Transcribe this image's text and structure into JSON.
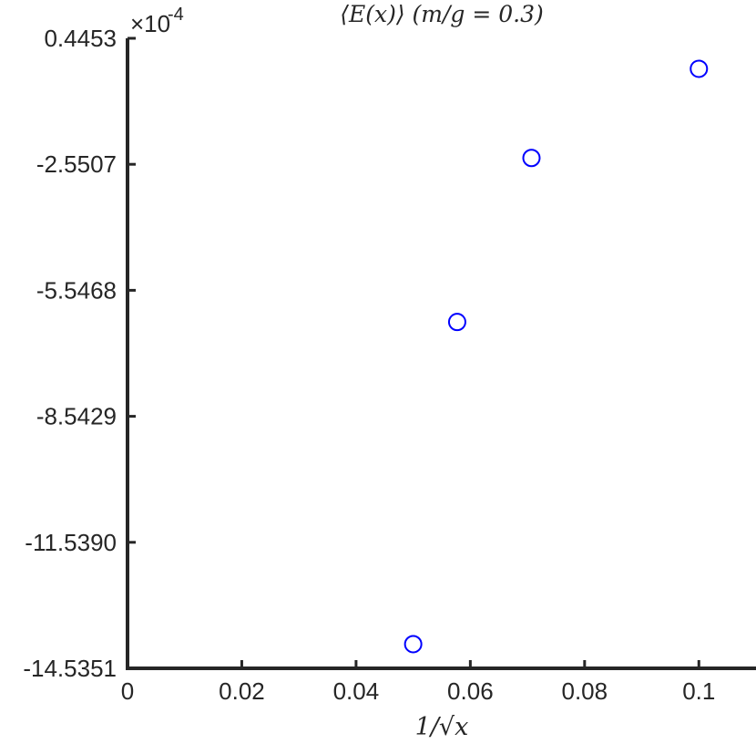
{
  "chart_data": {
    "type": "scatter",
    "title": "⟨E(x)⟩ (m/g = 0.3)",
    "xlabel": "1/√x",
    "ylabel": "",
    "y_multiplier": "×10",
    "y_multiplier_exponent": "-4",
    "xlim": [
      0,
      0.11
    ],
    "ylim": [
      -14.5351,
      0.4453
    ],
    "x_ticks": [
      0,
      0.02,
      0.04,
      0.06,
      0.08,
      0.1
    ],
    "x_tick_labels": [
      "0",
      "0.02",
      "0.04",
      "0.06",
      "0.08",
      "0.1"
    ],
    "y_ticks": [
      0.4453,
      -2.5507,
      -5.5468,
      -8.5429,
      -11.539,
      -14.5351
    ],
    "y_tick_labels": [
      "0.4453",
      "-2.5507",
      "-5.5468",
      "-8.5429",
      "-11.5390",
      "-14.5351"
    ],
    "series": [
      {
        "marker": "circle-open",
        "color": "#0000ff",
        "points": [
          {
            "x": 0.05,
            "y": -13.96
          },
          {
            "x": 0.0577,
            "y": -6.3
          },
          {
            "x": 0.0707,
            "y": -2.4
          },
          {
            "x": 0.1,
            "y": -0.28
          }
        ]
      }
    ],
    "grid": false
  }
}
